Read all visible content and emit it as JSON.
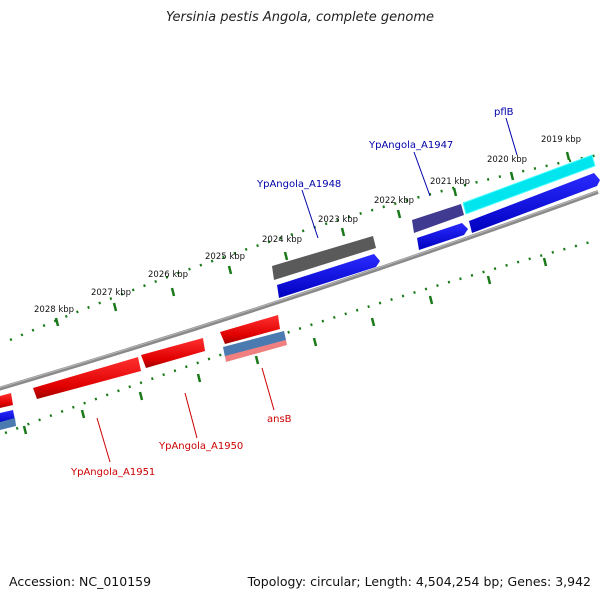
{
  "title": "Yersinia pestis Angola, complete genome",
  "footer": {
    "accession": "Accession: NC_010159",
    "summary": "Topology: circular; Length: 4,504,254 bp; Genes: 3,942"
  },
  "colors": {
    "forward_gene_label": "#0000aa",
    "reverse_gene_label": "#cc0000",
    "ticks": "#1a7a1a",
    "backbone": "#808080"
  },
  "ticks": [
    "2019 kbp",
    "2020 kbp",
    "2021 kbp",
    "2022 kbp",
    "2023 kbp",
    "2024 kbp",
    "2025 kbp",
    "2026 kbp",
    "2027 kbp",
    "2028 kbp"
  ],
  "gene_labels": {
    "pflB": "pflB",
    "ypa1947": "YpAngola_A1947",
    "ypa1948": "YpAngola_A1948",
    "ansB": "ansB",
    "ypa1950": "YpAngola_A1950",
    "ypa1951": "YpAngola_A1951"
  }
}
